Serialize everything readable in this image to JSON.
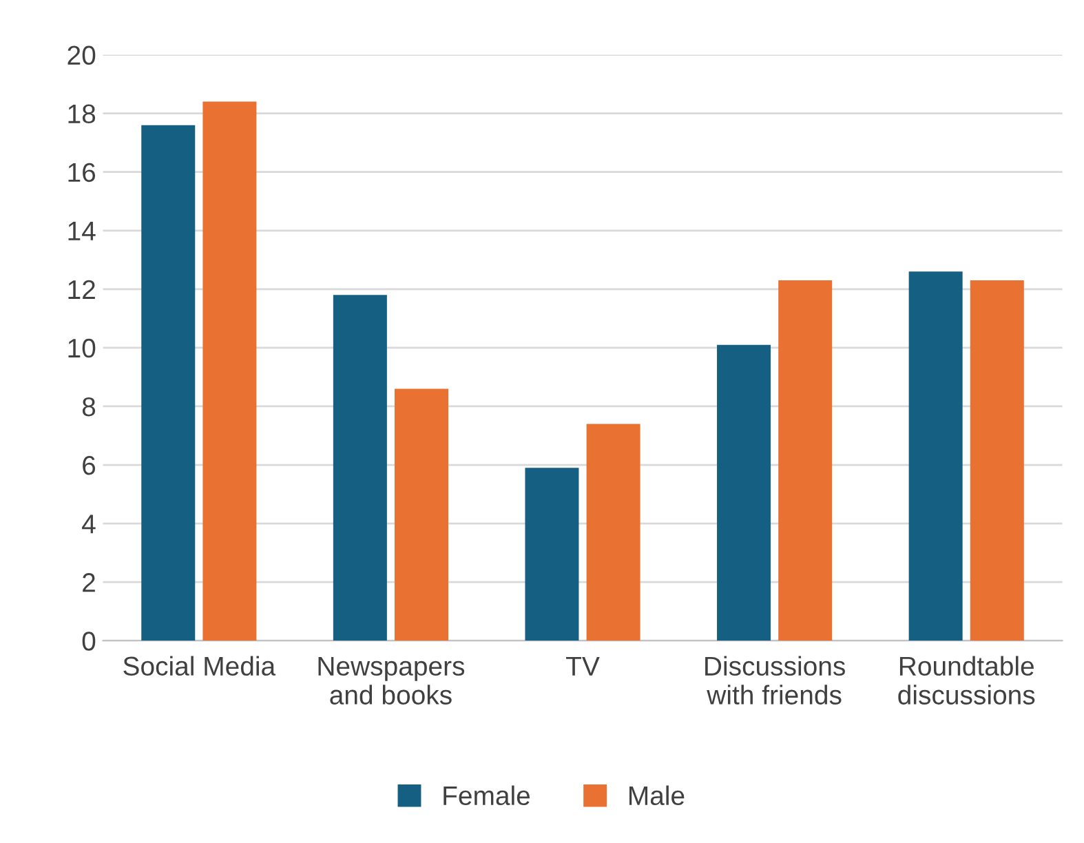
{
  "chart_data": {
    "type": "bar",
    "categories": [
      "Social Media",
      "Newspapers\nand books",
      "TV",
      "Discussions\nwith friends",
      "Roundtable\ndiscussions"
    ],
    "series": [
      {
        "name": "Female",
        "color": "#156082",
        "values": [
          17.6,
          11.8,
          5.9,
          10.1,
          12.6
        ]
      },
      {
        "name": "Male",
        "color": "#e97132",
        "values": [
          18.4,
          8.6,
          7.4,
          12.3,
          12.3
        ]
      }
    ],
    "ylim": [
      0,
      20
    ],
    "yticks": [
      0,
      2,
      4,
      6,
      8,
      10,
      12,
      14,
      16,
      18,
      20
    ],
    "grid": "y",
    "legend": "bottom"
  }
}
